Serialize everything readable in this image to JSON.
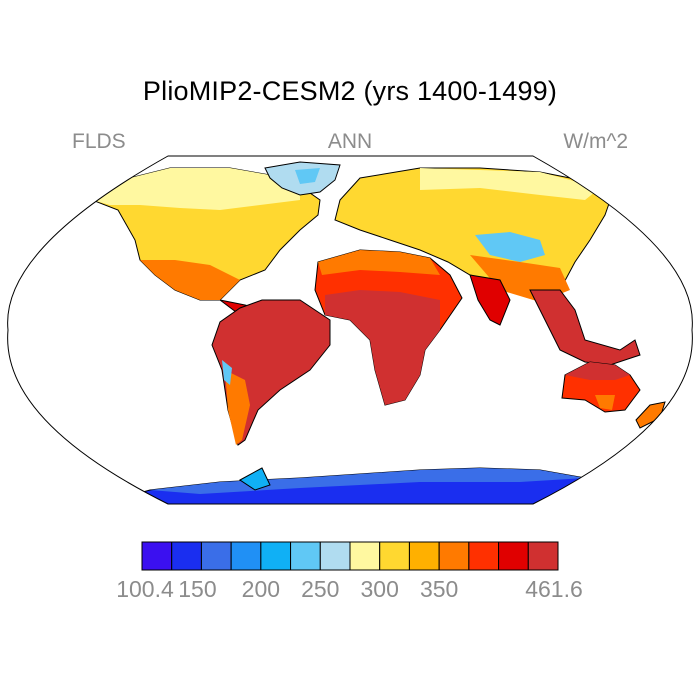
{
  "title": "PlioMIP2-CESM2 (yrs 1400-1499)",
  "variable": "FLDS",
  "season": "ANN",
  "units": "W/m^2",
  "colorbar": {
    "colors": [
      "#3b10f0",
      "#1a2ef0",
      "#3a6ee8",
      "#2090f5",
      "#10b0f5",
      "#60c8f5",
      "#b0dcf0",
      "#fff8a0",
      "#ffd830",
      "#ffb000",
      "#ff7a00",
      "#ff3000",
      "#e00000",
      "#d03030"
    ],
    "tick_labels": [
      "100.4",
      "150",
      "200",
      "250",
      "300",
      "350",
      "461.6"
    ],
    "min": 100.4,
    "max": 461.6
  }
}
